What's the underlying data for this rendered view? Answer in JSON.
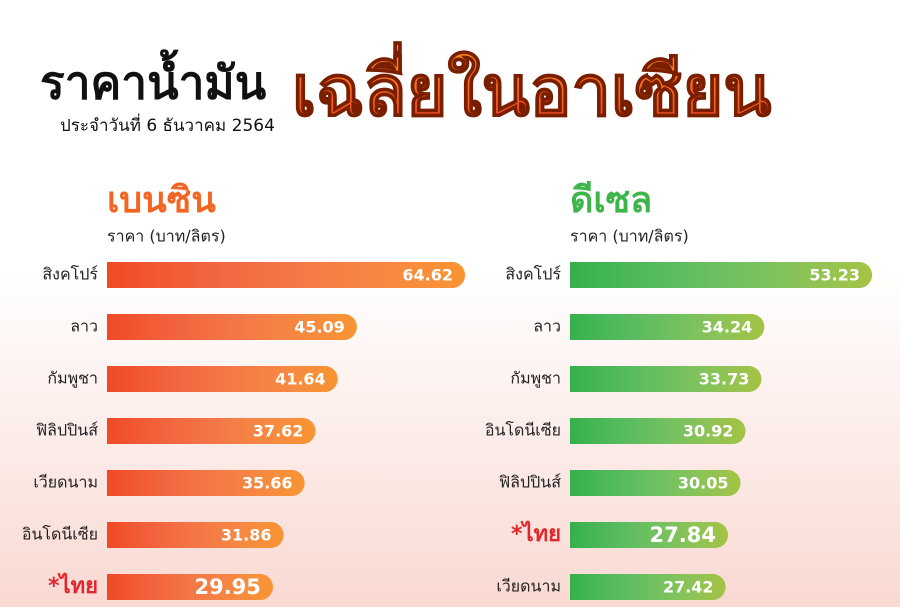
{
  "header": {
    "title": "ราคาน้ำมัน",
    "highlight_title": "เฉลี่ยในอาเซียน",
    "subtitle": "ประจำวันที่ 6 ธันวาคม 2564"
  },
  "chart_data": [
    {
      "type": "bar",
      "orientation": "horizontal",
      "title": "เบนซิน",
      "axis_label": "ราคา (บาท/ลิตร)",
      "color": "#f04a24",
      "title_color": "#f26522",
      "categories": [
        "สิงคโปร์",
        "ลาว",
        "กัมพูชา",
        "ฟิลิปปินส์",
        "เวียดนาม",
        "อินโดนีเซีย",
        "*ไทย"
      ],
      "values": [
        64.62,
        45.09,
        41.64,
        37.62,
        35.66,
        31.86,
        29.95
      ],
      "highlight_index": 6,
      "highlight_color": "#e3262b"
    },
    {
      "type": "bar",
      "orientation": "horizontal",
      "title": "ดีเซล",
      "axis_label": "ราคา (บาท/ลิตร)",
      "color": "#36b04a",
      "title_color": "#3db54a",
      "categories": [
        "สิงคโปร์",
        "ลาว",
        "กัมพูชา",
        "อินโดนีเซีย",
        "ฟิลิปปินส์",
        "*ไทย",
        "เวียดนาม"
      ],
      "values": [
        53.23,
        34.24,
        33.73,
        30.92,
        30.05,
        27.84,
        27.42
      ],
      "highlight_index": 5,
      "highlight_color": "#e3262b"
    }
  ]
}
